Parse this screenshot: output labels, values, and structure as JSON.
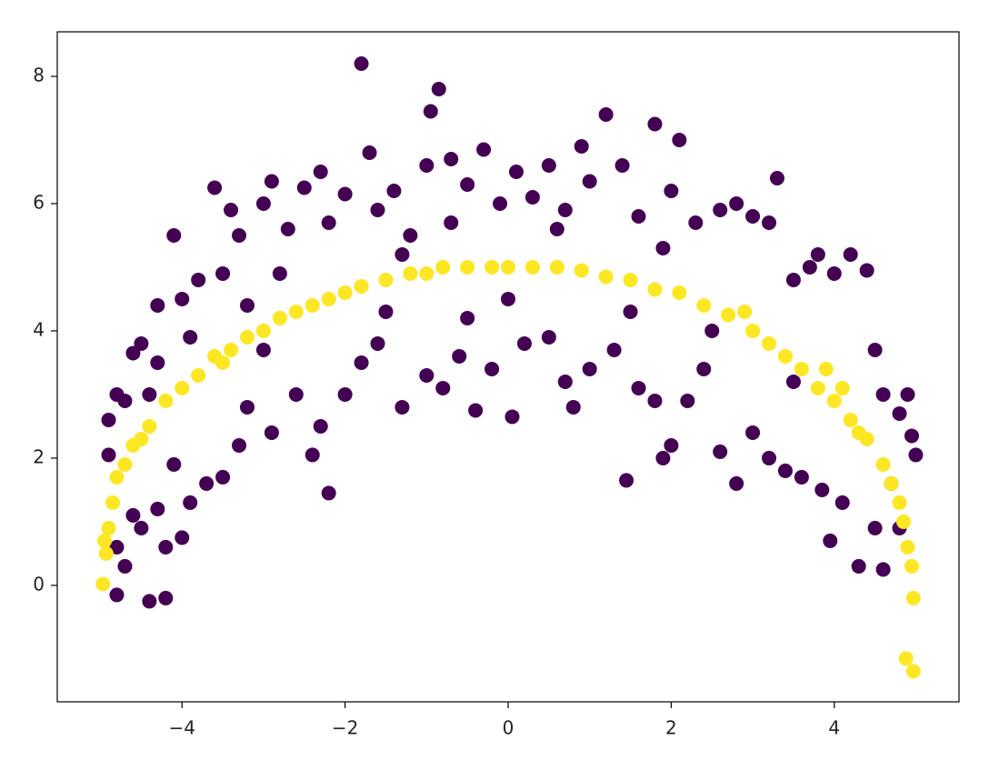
{
  "chart_data": {
    "type": "scatter",
    "xlim": [
      -5.53,
      5.53
    ],
    "ylim": [
      -1.83,
      8.7
    ],
    "xticks": [
      {
        "value": -4,
        "label": "−4"
      },
      {
        "value": -2,
        "label": "−2"
      },
      0,
      2,
      4
    ],
    "yticks": [
      0,
      2,
      4,
      6,
      8
    ],
    "grid": false,
    "series": [
      {
        "color": "#440154",
        "x": [
          -4.9,
          -4.9,
          -4.8,
          -4.7,
          -4.6,
          -4.5,
          -4.4,
          -4.3,
          -4.1,
          -4.0,
          -3.9,
          -3.8,
          -3.6,
          -3.5,
          -3.4,
          -3.3,
          -3.2,
          -3.0,
          -2.9,
          -2.8,
          -2.7,
          -2.5,
          -2.3,
          -2.2,
          -2.0,
          -1.8,
          -1.7,
          -1.6,
          -1.4,
          -1.2,
          -1.0,
          -0.95,
          -0.85,
          -0.7,
          -0.5,
          -0.3,
          -0.1,
          0.1,
          0.3,
          0.5,
          0.7,
          0.9,
          1.0,
          1.2,
          1.4,
          1.6,
          1.8,
          2.0,
          2.1,
          2.3,
          2.6,
          2.8,
          3.0,
          3.2,
          3.3,
          3.5,
          3.7,
          3.8,
          4.0,
          4.2,
          4.4,
          4.5,
          4.6,
          4.8,
          4.9,
          4.95,
          5.0,
          -4.8,
          -4.8,
          -4.7,
          -4.6,
          -4.5,
          -4.4,
          -4.3,
          -4.2,
          -4.2,
          -4.0,
          -4.1,
          -3.9,
          -3.7,
          -3.5,
          -3.3,
          -3.2,
          -2.9,
          -2.6,
          -2.3,
          -2.4,
          -2.2,
          -2.0,
          -1.8,
          -1.6,
          -1.3,
          -1.0,
          -0.8,
          -0.6,
          -0.4,
          -0.2,
          0.05,
          0.2,
          0.5,
          0.7,
          0.8,
          1.0,
          1.3,
          1.45,
          1.6,
          1.8,
          1.9,
          2.0,
          2.2,
          2.4,
          2.6,
          2.8,
          3.0,
          3.2,
          3.4,
          3.6,
          3.85,
          3.95,
          4.1,
          4.3,
          4.5,
          4.6,
          4.7,
          4.8,
          -3.0,
          -1.5,
          0,
          -0.5,
          1.5,
          2.5,
          3.5,
          -4.3,
          -0.7,
          0.6,
          -1.3,
          1.9
        ],
        "values": [
          2.6,
          2.05,
          3.0,
          2.9,
          3.65,
          3.8,
          3.0,
          4.4,
          5.5,
          4.5,
          3.9,
          4.8,
          6.25,
          4.9,
          5.9,
          5.5,
          4.4,
          6.0,
          6.35,
          4.9,
          5.6,
          6.25,
          6.5,
          5.7,
          6.15,
          8.2,
          6.8,
          5.9,
          6.2,
          5.5,
          6.6,
          7.45,
          7.8,
          6.7,
          6.3,
          6.85,
          6.0,
          6.5,
          6.1,
          6.6,
          5.9,
          6.9,
          6.35,
          7.4,
          6.6,
          5.8,
          7.25,
          6.2,
          7.0,
          5.7,
          5.9,
          6.0,
          5.8,
          5.7,
          6.4,
          4.8,
          5.0,
          5.2,
          4.9,
          5.2,
          4.95,
          3.7,
          3.0,
          2.7,
          3.0,
          2.35,
          2.05,
          0.6,
          -0.15,
          0.3,
          1.1,
          0.9,
          -0.25,
          1.2,
          -0.2,
          0.6,
          0.75,
          1.9,
          1.3,
          1.6,
          1.7,
          2.2,
          2.8,
          2.4,
          3.0,
          2.5,
          2.05,
          1.45,
          3.0,
          3.5,
          3.8,
          2.8,
          3.3,
          3.1,
          3.6,
          2.75,
          3.4,
          2.65,
          3.8,
          3.9,
          3.2,
          2.8,
          3.4,
          3.7,
          1.65,
          3.1,
          2.9,
          2.0,
          2.2,
          2.9,
          3.4,
          2.1,
          1.6,
          2.4,
          2.0,
          1.8,
          1.7,
          1.5,
          0.7,
          1.3,
          0.3,
          0.9,
          0.25,
          1.6,
          0.9,
          3.7,
          4.3,
          4.5,
          4.2,
          4.3,
          4.0,
          3.2,
          3.5,
          5.7,
          5.6,
          5.2,
          5.3
        ]
      },
      {
        "color": "#fde725",
        "x": [
          -4.97,
          -4.95,
          -4.93,
          -4.9,
          -4.85,
          -4.8,
          -4.7,
          -4.6,
          -4.4,
          -4.2,
          -4.0,
          -3.8,
          -3.6,
          -3.4,
          -3.2,
          -3.0,
          -2.8,
          -2.6,
          -2.4,
          -2.2,
          -2.0,
          -1.8,
          -1.5,
          -1.2,
          -1.0,
          -0.8,
          -0.5,
          -0.2,
          0,
          0.3,
          0.6,
          0.9,
          1.2,
          1.5,
          1.8,
          2.1,
          2.4,
          2.7,
          3.0,
          3.2,
          3.4,
          3.6,
          3.8,
          4.0,
          4.2,
          4.4,
          4.6,
          4.7,
          4.8,
          4.85,
          4.9,
          4.95,
          4.97,
          4.88,
          4.97,
          4.1,
          4.3,
          -4.5,
          -3.5,
          2.9,
          3.9
        ],
        "values": [
          0.02,
          0.7,
          0.5,
          0.9,
          1.3,
          1.7,
          1.9,
          2.2,
          2.5,
          2.9,
          3.1,
          3.3,
          3.6,
          3.7,
          3.9,
          4.0,
          4.2,
          4.3,
          4.4,
          4.5,
          4.6,
          4.7,
          4.8,
          4.9,
          4.9,
          5.0,
          5.0,
          5.0,
          5.0,
          5.0,
          5.0,
          4.95,
          4.85,
          4.8,
          4.65,
          4.6,
          4.4,
          4.25,
          4.0,
          3.8,
          3.6,
          3.4,
          3.1,
          2.9,
          2.6,
          2.3,
          1.9,
          1.6,
          1.3,
          1.0,
          0.6,
          0.3,
          -0.2,
          -1.15,
          -1.35,
          3.1,
          2.4,
          2.3,
          3.5,
          4.3,
          3.4
        ]
      }
    ]
  }
}
